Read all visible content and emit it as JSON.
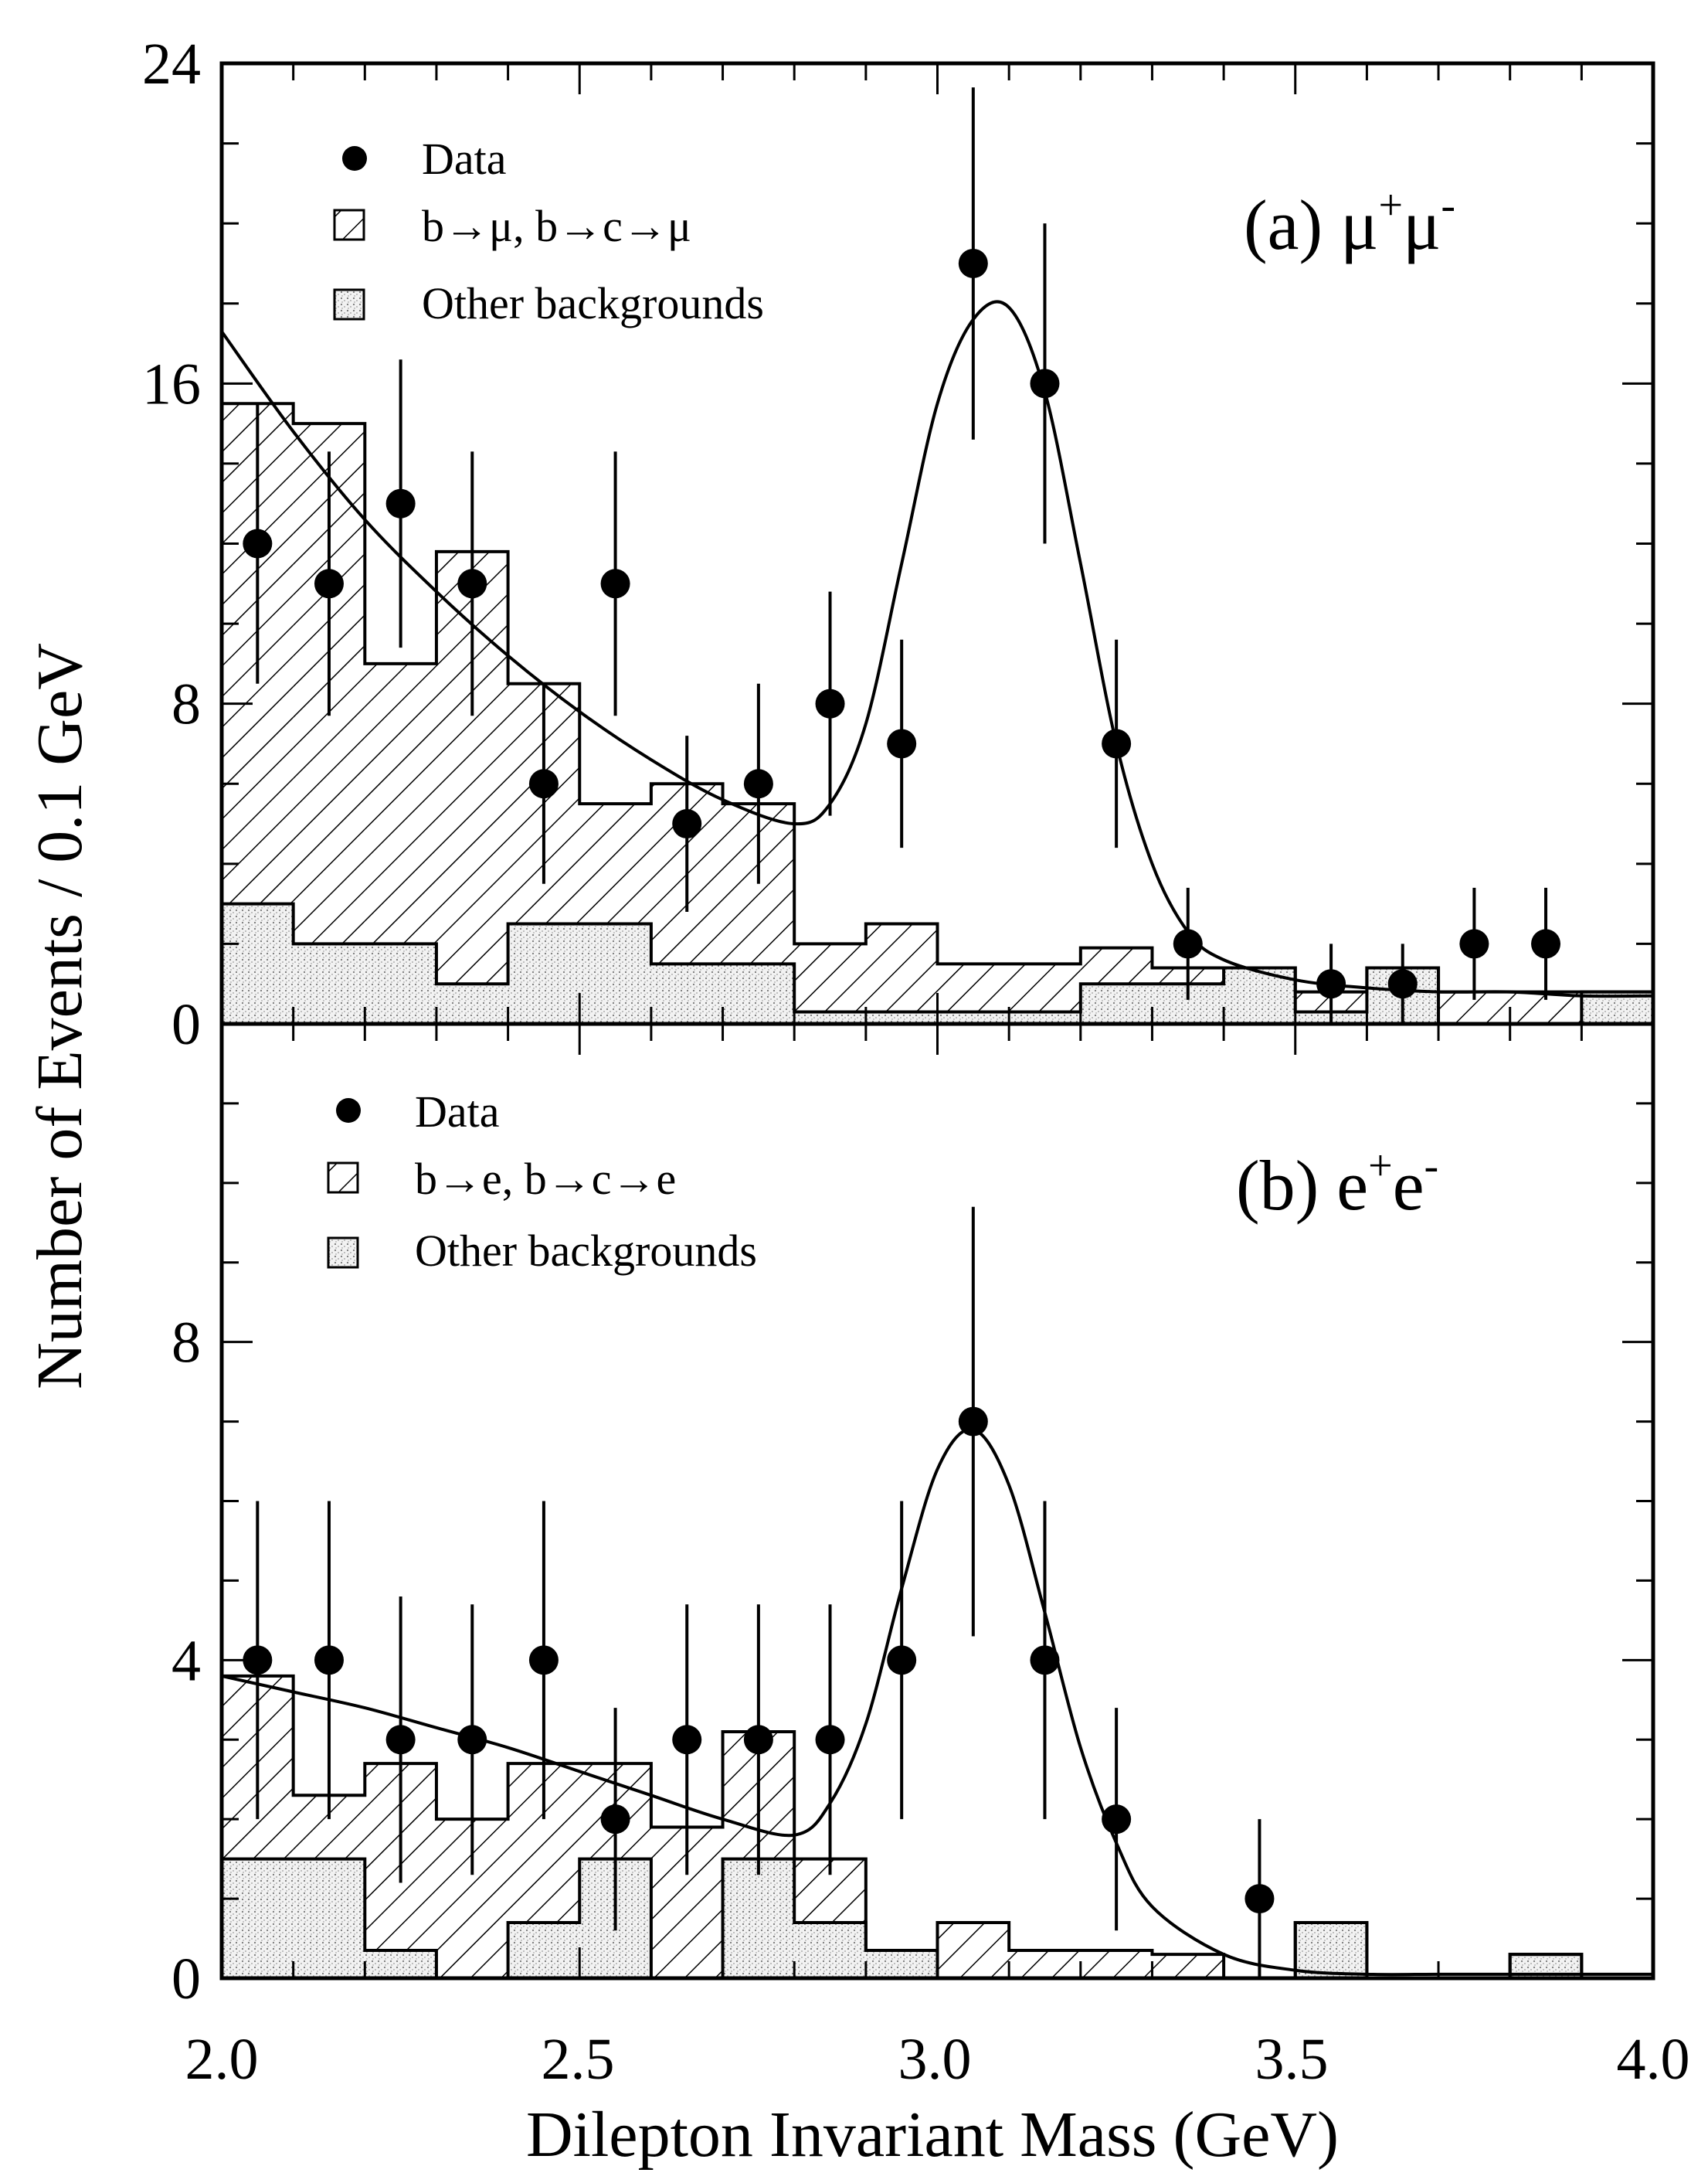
{
  "chart_data": [
    {
      "type": "histogram",
      "panel_label": "(a) μ",
      "panel_label_sup1": "+",
      "panel_label_mid": "μ",
      "panel_label_sup2": "-",
      "xlim": [
        2.0,
        4.0
      ],
      "ylim": [
        0,
        24
      ],
      "yticks": [
        "0",
        "8",
        "16",
        "24"
      ],
      "legend": [
        "Data",
        "b→μ, b→c→μ",
        "Other backgrounds"
      ],
      "bin_edges": [
        2.0,
        2.1,
        2.2,
        2.3,
        2.4,
        2.5,
        2.6,
        2.7,
        2.8,
        2.9,
        3.0,
        3.1,
        3.2,
        3.3,
        3.4,
        3.5,
        3.6,
        3.7,
        3.8,
        3.9,
        4.0
      ],
      "hatched_total": [
        15.5,
        15.0,
        9.0,
        11.8,
        8.5,
        5.5,
        6.0,
        5.5,
        2.0,
        2.5,
        1.5,
        1.5,
        1.9,
        1.4,
        1.4,
        0.8,
        1.4,
        0.8,
        0.8,
        0.8
      ],
      "other_backgrounds": [
        3.0,
        2.0,
        2.0,
        1.0,
        2.5,
        2.5,
        1.5,
        1.5,
        0.3,
        0.3,
        0.3,
        0.3,
        1.0,
        1.0,
        1.4,
        0.3,
        1.4,
        0.0,
        0.0,
        0.8
      ],
      "data": {
        "x": [
          2.05,
          2.15,
          2.25,
          2.35,
          2.45,
          2.55,
          2.65,
          2.75,
          2.85,
          2.95,
          3.05,
          3.15,
          3.25,
          3.35,
          3.55,
          3.65,
          3.75,
          3.85
        ],
        "y": [
          12,
          11,
          13,
          11,
          6,
          11,
          5,
          6,
          8,
          7,
          19,
          16,
          7,
          2,
          1,
          1,
          2,
          2
        ],
        "err": [
          3.5,
          3.3,
          3.6,
          3.3,
          2.5,
          3.3,
          2.2,
          2.5,
          2.8,
          2.6,
          4.4,
          4.0,
          2.6,
          1.4,
          1.0,
          1.0,
          1.4,
          1.4
        ]
      },
      "fit_curve": {
        "x": [
          2.0,
          2.1,
          2.2,
          2.3,
          2.4,
          2.5,
          2.6,
          2.7,
          2.8,
          2.85,
          2.9,
          2.95,
          3.0,
          3.05,
          3.1,
          3.15,
          3.2,
          3.25,
          3.3,
          3.35,
          3.4,
          3.5,
          3.6,
          3.7,
          3.8,
          3.9,
          4.0
        ],
        "y": [
          17.3,
          14.8,
          12.6,
          10.8,
          9.2,
          7.8,
          6.6,
          5.6,
          5.0,
          5.5,
          7.5,
          11.5,
          15.5,
          17.6,
          17.9,
          15.8,
          11.5,
          7.0,
          4.0,
          2.3,
          1.6,
          1.1,
          0.9,
          0.8,
          0.8,
          0.7,
          0.7
        ]
      }
    },
    {
      "type": "histogram",
      "panel_label": "(b) e",
      "panel_label_sup1": "+",
      "panel_label_mid": "e",
      "panel_label_sup2": "-",
      "xlim": [
        2.0,
        4.0
      ],
      "ylim": [
        0,
        12
      ],
      "yticks": [
        "0",
        "4",
        "8"
      ],
      "legend": [
        "Data",
        "b→e, b→c→e",
        "Other backgrounds"
      ],
      "bin_edges": [
        2.0,
        2.1,
        2.2,
        2.3,
        2.4,
        2.5,
        2.6,
        2.7,
        2.8,
        2.9,
        3.0,
        3.1,
        3.2,
        3.3,
        3.4,
        3.5,
        3.6,
        3.7,
        3.8,
        3.9,
        4.0
      ],
      "hatched_total": [
        3.8,
        2.3,
        2.7,
        2.0,
        2.7,
        2.7,
        1.9,
        3.1,
        1.5,
        0.35,
        0.7,
        0.35,
        0.35,
        0.3,
        0.0,
        0.7,
        0.0,
        0.0,
        0.3,
        0.0
      ],
      "other_backgrounds": [
        1.5,
        1.5,
        0.35,
        0.0,
        0.7,
        1.5,
        0.0,
        1.5,
        0.7,
        0.35,
        0.0,
        0.0,
        0.0,
        0.0,
        0.0,
        0.7,
        0.0,
        0.0,
        0.3,
        0.0
      ],
      "data": {
        "x": [
          2.05,
          2.15,
          2.25,
          2.35,
          2.45,
          2.55,
          2.65,
          2.75,
          2.85,
          2.95,
          3.05,
          3.15,
          3.25,
          3.45
        ],
        "y": [
          4,
          4,
          3,
          3,
          4,
          2,
          3,
          3,
          3,
          4,
          7,
          4,
          2,
          1
        ],
        "err": [
          2.0,
          2.0,
          1.8,
          1.7,
          2.0,
          1.4,
          1.7,
          1.7,
          1.7,
          2.0,
          2.7,
          2.0,
          1.4,
          1.0
        ]
      },
      "fit_curve": {
        "x": [
          2.0,
          2.1,
          2.2,
          2.3,
          2.4,
          2.5,
          2.6,
          2.7,
          2.8,
          2.85,
          2.9,
          2.95,
          3.0,
          3.05,
          3.1,
          3.15,
          3.2,
          3.25,
          3.3,
          3.4,
          3.5,
          3.6,
          3.7,
          3.8,
          3.9,
          4.0
        ],
        "y": [
          3.8,
          3.6,
          3.4,
          3.15,
          2.9,
          2.6,
          2.3,
          2.0,
          1.8,
          2.2,
          3.2,
          4.9,
          6.4,
          6.9,
          6.2,
          4.6,
          2.9,
          1.7,
          0.9,
          0.3,
          0.1,
          0.05,
          0.05,
          0.05,
          0.05,
          0.05
        ]
      }
    }
  ],
  "axes": {
    "xlabel": "Dilepton Invariant Mass (GeV)",
    "ylabel": "Number of Events / 0.1 GeV",
    "xticks": [
      "2.0",
      "2.5",
      "3.0",
      "3.5",
      "4.0"
    ]
  }
}
